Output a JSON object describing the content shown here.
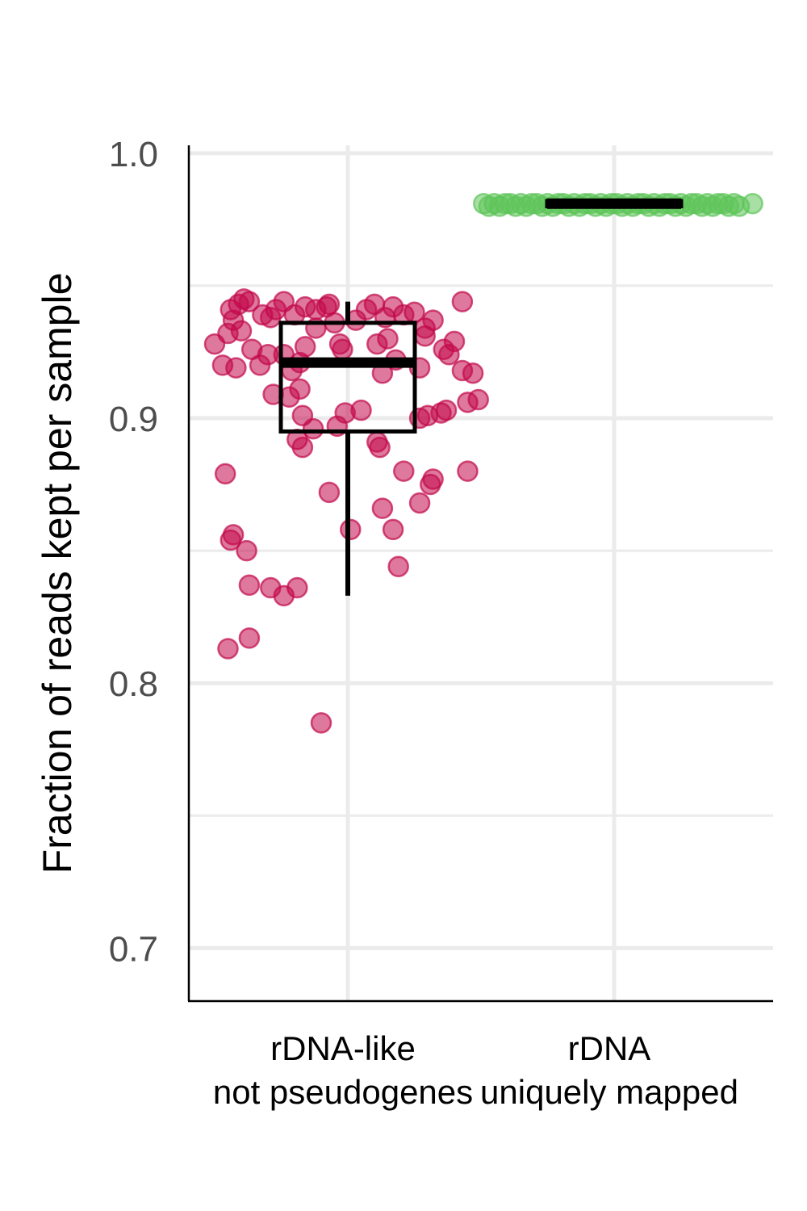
{
  "chart_data": {
    "type": "scatter",
    "subtype": "jitter-boxplot",
    "ylabel": "Fraction of reads kept per sample",
    "ylim": [
      0.68,
      1.003
    ],
    "yticks": [
      0.7,
      0.8,
      0.9,
      1.0
    ],
    "ytick_labels": [
      "0.7",
      "0.8",
      "0.9",
      "1.0"
    ],
    "grid": true,
    "legend": "none",
    "categories": [
      {
        "lines": [
          "rDNA-like",
          "not pseudogenes"
        ]
      },
      {
        "lines": [
          "rDNA",
          "uniquely mapped"
        ]
      }
    ],
    "series": [
      {
        "category_index": 0,
        "color": "#c2094a",
        "box": {
          "q1": 0.895,
          "median": 0.921,
          "q3": 0.936,
          "whisker_low": 0.833,
          "whisker_high": 0.944
        },
        "points": [
          {
            "x": 0.9,
            "y": 0.785
          },
          {
            "x": 0.55,
            "y": 0.813
          },
          {
            "x": 0.63,
            "y": 0.817
          },
          {
            "x": 0.63,
            "y": 0.837
          },
          {
            "x": 0.71,
            "y": 0.836
          },
          {
            "x": 0.76,
            "y": 0.833
          },
          {
            "x": 0.81,
            "y": 0.836
          },
          {
            "x": 0.62,
            "y": 0.85
          },
          {
            "x": 0.56,
            "y": 0.854
          },
          {
            "x": 0.57,
            "y": 0.856
          },
          {
            "x": 1.01,
            "y": 0.858
          },
          {
            "x": 1.17,
            "y": 0.858
          },
          {
            "x": 1.19,
            "y": 0.844
          },
          {
            "x": 1.13,
            "y": 0.866
          },
          {
            "x": 1.27,
            "y": 0.868
          },
          {
            "x": 1.31,
            "y": 0.875
          },
          {
            "x": 1.32,
            "y": 0.877
          },
          {
            "x": 0.54,
            "y": 0.879
          },
          {
            "x": 1.45,
            "y": 0.88
          },
          {
            "x": 1.21,
            "y": 0.88
          },
          {
            "x": 0.93,
            "y": 0.872
          },
          {
            "x": 0.83,
            "y": 0.889
          },
          {
            "x": 1.11,
            "y": 0.891
          },
          {
            "x": 1.12,
            "y": 0.889
          },
          {
            "x": 0.81,
            "y": 0.892
          },
          {
            "x": 0.87,
            "y": 0.896
          },
          {
            "x": 0.96,
            "y": 0.897
          },
          {
            "x": 0.83,
            "y": 0.901
          },
          {
            "x": 0.99,
            "y": 0.902
          },
          {
            "x": 1.27,
            "y": 0.9
          },
          {
            "x": 1.3,
            "y": 0.901
          },
          {
            "x": 1.35,
            "y": 0.902
          },
          {
            "x": 1.37,
            "y": 0.903
          },
          {
            "x": 1.05,
            "y": 0.903
          },
          {
            "x": 0.82,
            "y": 0.911
          },
          {
            "x": 0.72,
            "y": 0.909
          },
          {
            "x": 0.78,
            "y": 0.908
          },
          {
            "x": 1.45,
            "y": 0.906
          },
          {
            "x": 1.49,
            "y": 0.907
          },
          {
            "x": 1.47,
            "y": 0.917
          },
          {
            "x": 1.43,
            "y": 0.918
          },
          {
            "x": 1.27,
            "y": 0.919
          },
          {
            "x": 1.13,
            "y": 0.917
          },
          {
            "x": 0.79,
            "y": 0.918
          },
          {
            "x": 0.82,
            "y": 0.921
          },
          {
            "x": 0.76,
            "y": 0.924
          },
          {
            "x": 0.67,
            "y": 0.92
          },
          {
            "x": 0.58,
            "y": 0.919
          },
          {
            "x": 0.53,
            "y": 0.92
          },
          {
            "x": 0.5,
            "y": 0.928
          },
          {
            "x": 0.55,
            "y": 0.932
          },
          {
            "x": 0.57,
            "y": 0.937
          },
          {
            "x": 0.6,
            "y": 0.933
          },
          {
            "x": 0.56,
            "y": 0.941
          },
          {
            "x": 0.59,
            "y": 0.943
          },
          {
            "x": 0.63,
            "y": 0.944
          },
          {
            "x": 0.68,
            "y": 0.939
          },
          {
            "x": 0.71,
            "y": 0.938
          },
          {
            "x": 0.73,
            "y": 0.941
          },
          {
            "x": 0.76,
            "y": 0.944
          },
          {
            "x": 0.8,
            "y": 0.939
          },
          {
            "x": 0.84,
            "y": 0.942
          },
          {
            "x": 0.88,
            "y": 0.941
          },
          {
            "x": 0.92,
            "y": 0.942
          },
          {
            "x": 0.95,
            "y": 0.936
          },
          {
            "x": 0.97,
            "y": 0.928
          },
          {
            "x": 1.03,
            "y": 0.937
          },
          {
            "x": 1.07,
            "y": 0.941
          },
          {
            "x": 1.1,
            "y": 0.943
          },
          {
            "x": 1.14,
            "y": 0.938
          },
          {
            "x": 1.17,
            "y": 0.942
          },
          {
            "x": 1.21,
            "y": 0.939
          },
          {
            "x": 1.25,
            "y": 0.94
          },
          {
            "x": 1.29,
            "y": 0.934
          },
          {
            "x": 1.32,
            "y": 0.937
          },
          {
            "x": 1.36,
            "y": 0.926
          },
          {
            "x": 1.38,
            "y": 0.924
          },
          {
            "x": 1.4,
            "y": 0.929
          },
          {
            "x": 1.43,
            "y": 0.944
          },
          {
            "x": 1.11,
            "y": 0.928
          },
          {
            "x": 1.15,
            "y": 0.93
          },
          {
            "x": 0.84,
            "y": 0.927
          },
          {
            "x": 0.88,
            "y": 0.934
          },
          {
            "x": 0.64,
            "y": 0.926
          },
          {
            "x": 0.7,
            "y": 0.924
          },
          {
            "x": 0.61,
            "y": 0.945
          },
          {
            "x": 0.93,
            "y": 0.943
          },
          {
            "x": 1.18,
            "y": 0.922
          },
          {
            "x": 0.98,
            "y": 0.926
          },
          {
            "x": 1.29,
            "y": 0.931
          }
        ]
      },
      {
        "category_index": 1,
        "color": "#5ec45a",
        "box": {
          "q1": 0.98,
          "median": 0.981,
          "q3": 0.982,
          "whisker_low": 0.98,
          "whisker_high": 0.982
        },
        "points": [
          {
            "x": 1.51,
            "y": 0.981
          },
          {
            "x": 1.53,
            "y": 0.98
          },
          {
            "x": 1.55,
            "y": 0.981
          },
          {
            "x": 1.57,
            "y": 0.98
          },
          {
            "x": 1.59,
            "y": 0.981
          },
          {
            "x": 1.61,
            "y": 0.981
          },
          {
            "x": 1.63,
            "y": 0.98
          },
          {
            "x": 1.65,
            "y": 0.981
          },
          {
            "x": 1.67,
            "y": 0.98
          },
          {
            "x": 1.69,
            "y": 0.981
          },
          {
            "x": 1.71,
            "y": 0.981
          },
          {
            "x": 1.73,
            "y": 0.98
          },
          {
            "x": 1.75,
            "y": 0.981
          },
          {
            "x": 1.77,
            "y": 0.98
          },
          {
            "x": 1.79,
            "y": 0.981
          },
          {
            "x": 1.81,
            "y": 0.981
          },
          {
            "x": 1.83,
            "y": 0.98
          },
          {
            "x": 1.85,
            "y": 0.981
          },
          {
            "x": 1.87,
            "y": 0.98
          },
          {
            "x": 1.89,
            "y": 0.981
          },
          {
            "x": 1.91,
            "y": 0.981
          },
          {
            "x": 1.93,
            "y": 0.98
          },
          {
            "x": 1.95,
            "y": 0.981
          },
          {
            "x": 1.97,
            "y": 0.98
          },
          {
            "x": 1.99,
            "y": 0.981
          },
          {
            "x": 2.01,
            "y": 0.981
          },
          {
            "x": 2.03,
            "y": 0.98
          },
          {
            "x": 2.05,
            "y": 0.981
          },
          {
            "x": 2.07,
            "y": 0.98
          },
          {
            "x": 2.09,
            "y": 0.981
          },
          {
            "x": 2.11,
            "y": 0.981
          },
          {
            "x": 2.13,
            "y": 0.98
          },
          {
            "x": 2.15,
            "y": 0.981
          },
          {
            "x": 2.17,
            "y": 0.98
          },
          {
            "x": 2.19,
            "y": 0.981
          },
          {
            "x": 2.21,
            "y": 0.981
          },
          {
            "x": 2.23,
            "y": 0.98
          },
          {
            "x": 2.25,
            "y": 0.981
          },
          {
            "x": 2.27,
            "y": 0.98
          },
          {
            "x": 2.29,
            "y": 0.981
          },
          {
            "x": 2.31,
            "y": 0.981
          },
          {
            "x": 2.33,
            "y": 0.98
          },
          {
            "x": 2.35,
            "y": 0.981
          },
          {
            "x": 2.37,
            "y": 0.98
          },
          {
            "x": 2.39,
            "y": 0.981
          },
          {
            "x": 2.41,
            "y": 0.981
          },
          {
            "x": 2.43,
            "y": 0.98
          },
          {
            "x": 2.45,
            "y": 0.981
          },
          {
            "x": 2.47,
            "y": 0.98
          },
          {
            "x": 2.52,
            "y": 0.981
          }
        ]
      }
    ]
  }
}
